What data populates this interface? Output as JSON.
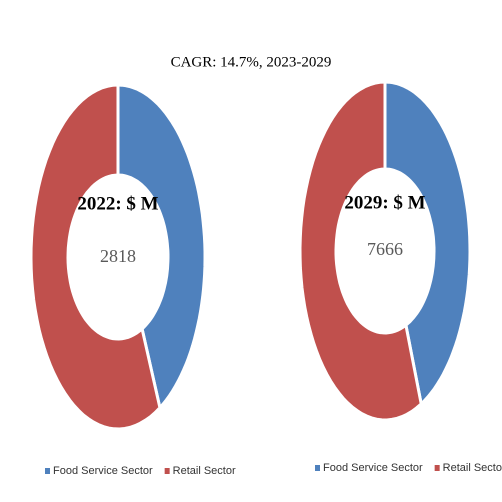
{
  "title": "CAGR:    14.7%, 2023-2029",
  "chart_data": [
    {
      "type": "donut",
      "title": "2022: $ M",
      "center_value": 2818,
      "categories": [
        "Food Service Sector",
        "Retail Sector"
      ],
      "values": [
        42,
        58
      ],
      "colors": [
        "#4f81bd",
        "#c0504d"
      ]
    },
    {
      "type": "donut",
      "title": "2029: $ M",
      "center_value": 7666,
      "categories": [
        "Food Service Sector",
        "Retail Sector"
      ],
      "values": [
        43,
        57
      ],
      "colors": [
        "#4f81bd",
        "#c0504d"
      ]
    }
  ]
}
